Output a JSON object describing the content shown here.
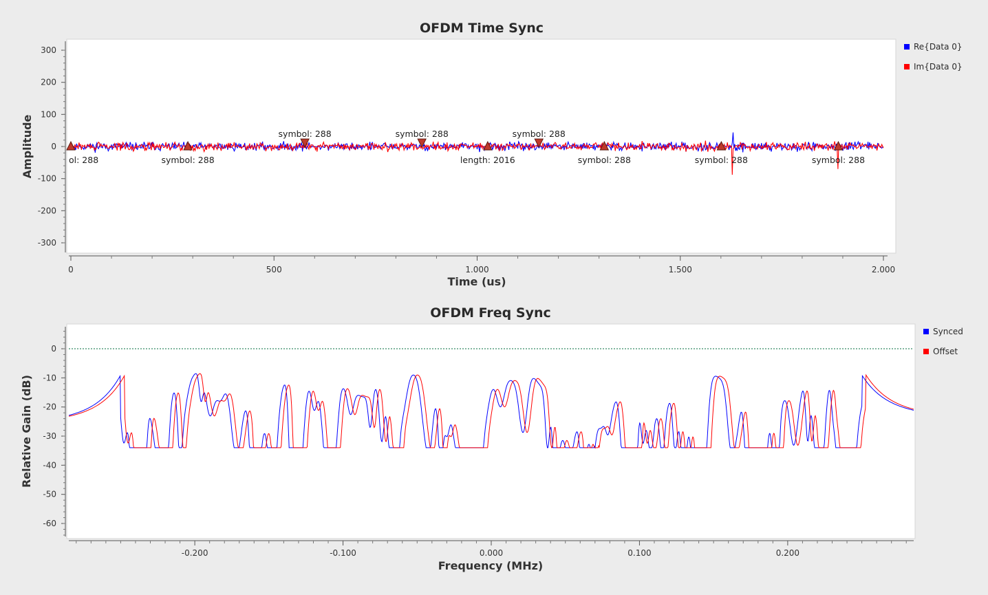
{
  "colors": {
    "background": "#ececec",
    "canvas": "#ffffff",
    "series_blue": "#0000ff",
    "series_red": "#ff0000",
    "tag_fill": "#c0392b",
    "reference_line": "#006e3c"
  },
  "chart_data": [
    {
      "type": "line",
      "title": "OFDM Time Sync",
      "xlabel": "Time (us)",
      "ylabel": "Amplitude",
      "xlim": [
        0,
        2000
      ],
      "ylim": [
        -320,
        320
      ],
      "x_ticks": [
        {
          "value": 0,
          "label": "0"
        },
        {
          "value": 500,
          "label": "500"
        },
        {
          "value": 1000,
          "label": "1.000"
        },
        {
          "value": 1500,
          "label": "1.500"
        },
        {
          "value": 2000,
          "label": "2.000"
        }
      ],
      "y_ticks": [
        {
          "value": 300,
          "label": "300"
        },
        {
          "value": 200,
          "label": "200"
        },
        {
          "value": 100,
          "label": "100"
        },
        {
          "value": 0,
          "label": "0"
        },
        {
          "value": -100,
          "label": "-100"
        },
        {
          "value": -200,
          "label": "-200"
        },
        {
          "value": -300,
          "label": "-300"
        }
      ],
      "grid": false,
      "legend_position": "right",
      "series": [
        {
          "name": "Re{Data 0}",
          "color": "#0000ff",
          "seed": 11,
          "sigma": 9,
          "spikes": [
            {
              "x": 1630,
              "y": 44
            }
          ]
        },
        {
          "name": "Im{Data 0}",
          "color": "#ff0000",
          "seed": 29,
          "sigma": 9,
          "spikes": [
            {
              "x": 1628,
              "y": -88
            },
            {
              "x": 1888,
              "y": -70
            }
          ]
        }
      ],
      "tags": [
        {
          "x": 0,
          "dir": "up",
          "label": "ol: 288",
          "label_side": "below"
        },
        {
          "x": 288,
          "dir": "up",
          "label": "symbol: 288",
          "label_side": "below"
        },
        {
          "x": 576,
          "dir": "down",
          "label": "symbol: 288",
          "label_side": "above"
        },
        {
          "x": 864,
          "dir": "down",
          "label": "symbol: 288",
          "label_side": "above"
        },
        {
          "x": 1026,
          "dir": "up",
          "label": "length: 2016",
          "label_side": "below"
        },
        {
          "x": 1152,
          "dir": "down",
          "label": "symbol: 288",
          "label_side": "above"
        },
        {
          "x": 1313,
          "dir": "up",
          "label": "symbol: 288",
          "label_side": "below"
        },
        {
          "x": 1601,
          "dir": "up",
          "label": "symbol: 288",
          "label_side": "below"
        },
        {
          "x": 1889,
          "dir": "up",
          "label": "symbol: 288",
          "label_side": "below"
        }
      ]
    },
    {
      "type": "line",
      "title": "OFDM Freq Sync",
      "xlabel": "Frequency (MHz)",
      "ylabel": "Relative Gain (dB)",
      "xlim": [
        -0.285,
        0.285
      ],
      "ylim": [
        -65,
        8
      ],
      "x_ticks": [
        {
          "value": -0.2,
          "label": "-0.200"
        },
        {
          "value": -0.1,
          "label": "-0.100"
        },
        {
          "value": 0.0,
          "label": "0.000"
        },
        {
          "value": 0.1,
          "label": "0.100"
        },
        {
          "value": 0.2,
          "label": "0.200"
        }
      ],
      "y_ticks": [
        {
          "value": 0,
          "label": "0"
        },
        {
          "value": -10,
          "label": "-10"
        },
        {
          "value": -20,
          "label": "-20"
        },
        {
          "value": -30,
          "label": "-30"
        },
        {
          "value": -40,
          "label": "-40"
        },
        {
          "value": -50,
          "label": "-50"
        },
        {
          "value": -60,
          "label": "-60"
        }
      ],
      "grid": false,
      "legend_position": "right",
      "reference_line_y": 0,
      "band_edges": [
        -0.25,
        0.25
      ],
      "series": [
        {
          "name": "Synced",
          "color": "#0000ff",
          "seed": 7,
          "offset": 0
        },
        {
          "name": "Offset",
          "color": "#ff0000",
          "seed": 7,
          "offset": 0.0028
        }
      ]
    }
  ]
}
